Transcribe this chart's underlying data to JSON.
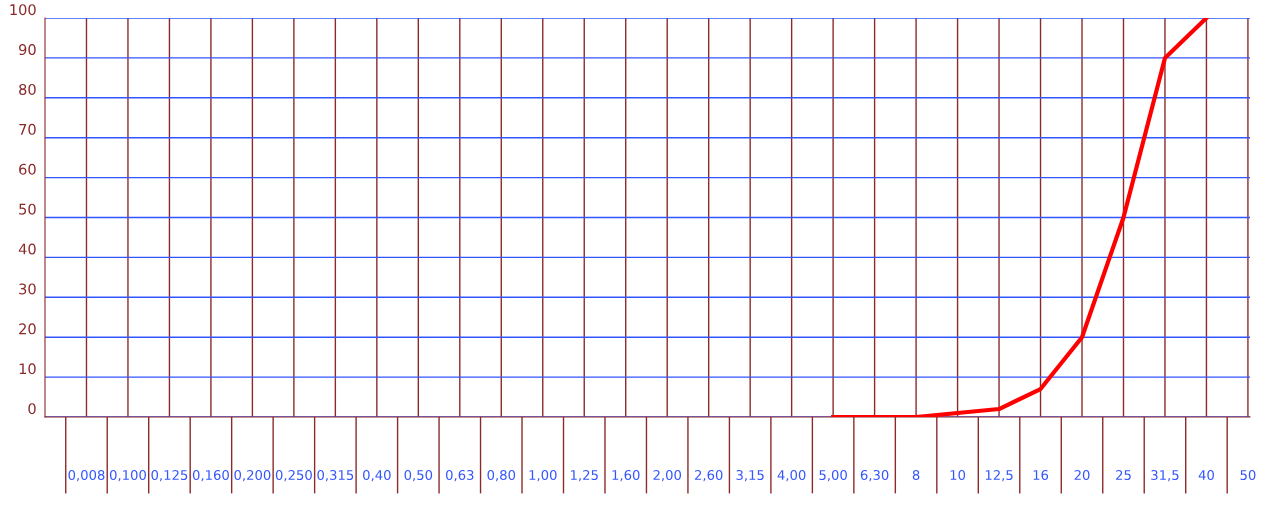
{
  "chart_data": {
    "type": "line",
    "categories": [
      "0,008",
      "0,100",
      "0,125",
      "0,160",
      "0,200",
      "0,250",
      "0,315",
      "0,40",
      "0,50",
      "0,63",
      "0,80",
      "1,00",
      "1,25",
      "1,60",
      "2,00",
      "2,60",
      "3,15",
      "4,00",
      "5,00",
      "6,30",
      "8",
      "10",
      "12,5",
      "16",
      "20",
      "25",
      "31,5",
      "40",
      "50"
    ],
    "series": [
      {
        "color": "#ff0000",
        "values": [
          null,
          null,
          null,
          null,
          null,
          null,
          null,
          null,
          null,
          null,
          null,
          null,
          null,
          null,
          null,
          null,
          null,
          null,
          0,
          0,
          0,
          1,
          2,
          7,
          20,
          50,
          90,
          100,
          null
        ]
      }
    ],
    "ylim": [
      0,
      100
    ],
    "yticks": [
      0,
      10,
      20,
      30,
      40,
      50,
      60,
      70,
      80,
      90,
      100
    ],
    "grid": true,
    "legend": false,
    "marker": "none",
    "line_style": "solid"
  }
}
